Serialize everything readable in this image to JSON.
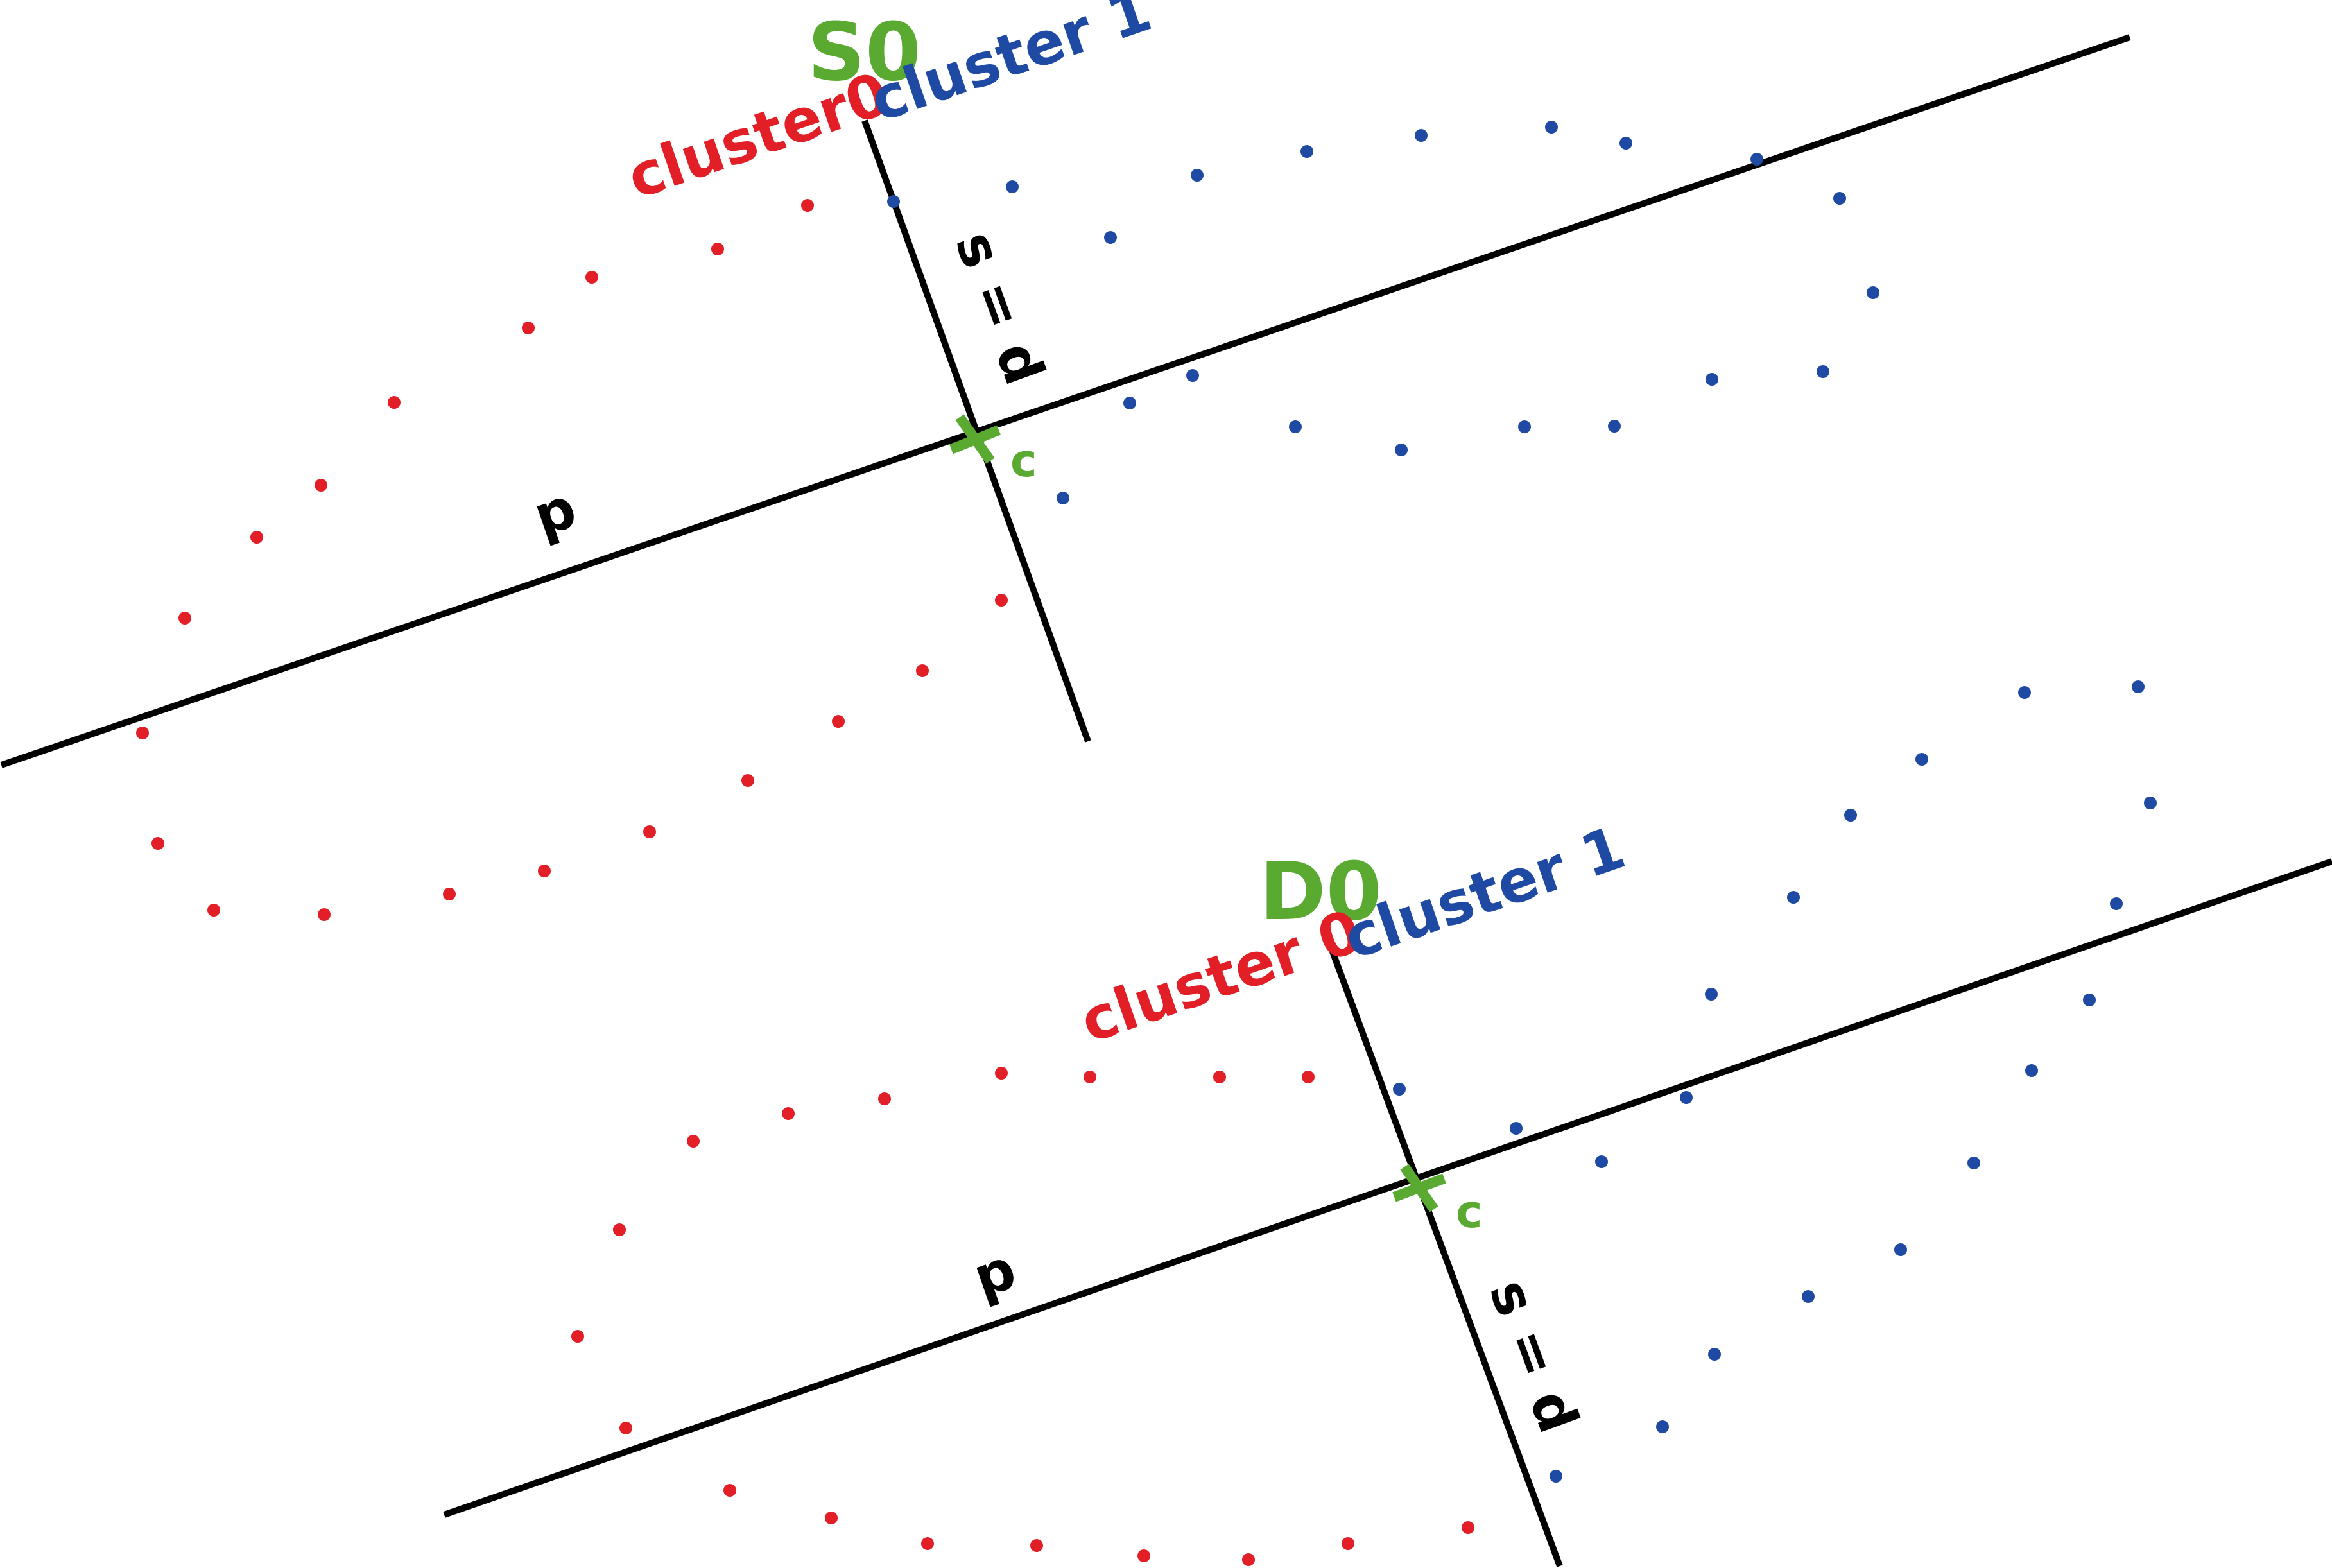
{
  "colors": {
    "cluster0": "#e21f26",
    "cluster1": "#1f4aa3",
    "center": "#5aaa32",
    "axis": "#000000"
  },
  "panels": [
    {
      "id": "S0",
      "title": "S0",
      "cluster0_label": "cluster0",
      "cluster1_label": "cluster 1",
      "p_label": "p",
      "s_label": "s = d",
      "center_label": "c",
      "center_marker": "x-mark-icon"
    },
    {
      "id": "D0",
      "title": "D0",
      "cluster0_label": "cluster 0",
      "cluster1_label": "cluster 1",
      "p_label": "p",
      "s_label": "s = d",
      "center_label": "c",
      "center_marker": "x-mark-icon"
    }
  ]
}
